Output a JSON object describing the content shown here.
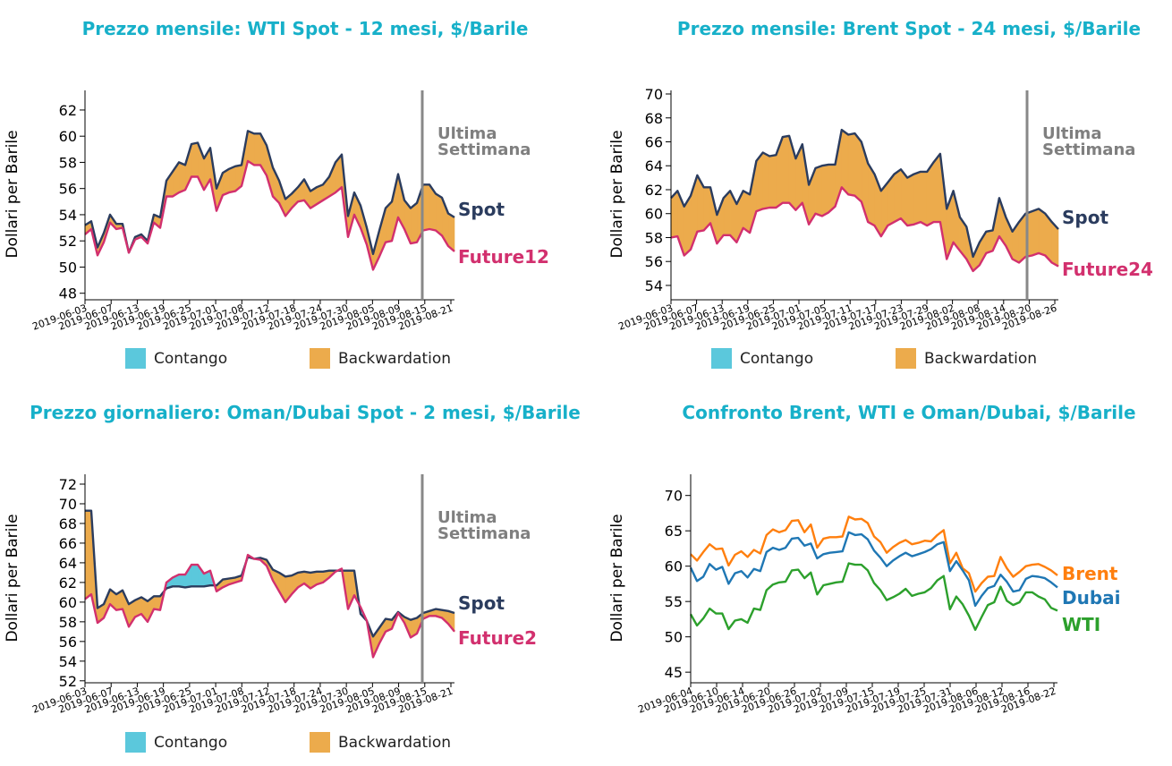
{
  "colors": {
    "title": "#17b0c9",
    "spot": "#2b3c5e",
    "future": "#d2306e",
    "contango": "#5bc8dc",
    "backwardation": "#ecab4c",
    "vline": "#888888",
    "brent": "#ff7f0e",
    "dubai": "#1f77b4",
    "wti": "#2ca02c"
  },
  "chart_data": [
    {
      "type": "area",
      "title": "Prezzo mensile: WTI Spot - 12 mesi, $/Barile",
      "ylabel": "Dollari per Barile",
      "ylim": [
        47.5,
        63.5
      ],
      "yticks": [
        48,
        50,
        52,
        54,
        56,
        58,
        60,
        62
      ],
      "xticks": [
        "2019-06-03",
        "2019-06-07",
        "2019-06-13",
        "2019-06-19",
        "2019-06-25",
        "2019-07-01",
        "2019-07-08",
        "2019-07-12",
        "2019-07-18",
        "2019-07-24",
        "2019-07-30",
        "2019-08-05",
        "2019-08-09",
        "2019-08-15",
        "2019-08-21"
      ],
      "vline_label": [
        "Ultima",
        "Settimana"
      ],
      "legend": [
        "Contango",
        "Backwardation"
      ],
      "series": [
        {
          "name": "Spot",
          "values": [
            53.2,
            53.5,
            51.5,
            52.6,
            54.0,
            53.3,
            53.3,
            51.1,
            52.3,
            52.5,
            52.0,
            54.0,
            53.8,
            56.6,
            57.3,
            58.0,
            57.8,
            59.4,
            59.5,
            58.3,
            59.1,
            56.0,
            57.2,
            57.5,
            57.7,
            57.8,
            60.4,
            60.2,
            60.2,
            59.3,
            57.6,
            56.6,
            55.2,
            55.6,
            56.1,
            56.7,
            55.8,
            56.1,
            56.3,
            56.9,
            58.0,
            58.6,
            53.9,
            55.7,
            54.7,
            53.0,
            51.0,
            52.8,
            54.5,
            55.0,
            57.1,
            55.1,
            54.5,
            54.9,
            56.3,
            56.3,
            55.6,
            55.3,
            54.1,
            53.8
          ]
        },
        {
          "name": "Future12",
          "values": [
            52.5,
            52.9,
            50.9,
            51.9,
            53.4,
            52.9,
            53.0,
            51.1,
            52.1,
            52.3,
            51.8,
            53.4,
            53.0,
            55.4,
            55.4,
            55.7,
            55.9,
            56.9,
            56.9,
            55.9,
            56.7,
            54.3,
            55.5,
            55.7,
            55.8,
            56.2,
            58.1,
            57.8,
            57.8,
            57.0,
            55.4,
            54.9,
            53.9,
            54.5,
            55.0,
            55.1,
            54.5,
            54.8,
            55.1,
            55.4,
            55.7,
            56.1,
            52.3,
            54.0,
            53.0,
            51.7,
            49.8,
            50.8,
            51.9,
            52.0,
            53.8,
            52.9,
            51.8,
            51.9,
            52.8,
            52.9,
            52.8,
            52.4,
            51.6,
            51.2
          ]
        }
      ]
    },
    {
      "type": "area",
      "title": "Prezzo mensile: Brent Spot - 24 mesi, $/Barile",
      "ylabel": "Dollari per Barile",
      "ylim": [
        52.8,
        70.3
      ],
      "yticks": [
        54,
        56,
        58,
        60,
        62,
        64,
        66,
        68,
        70
      ],
      "xticks": [
        "2019-06-03",
        "2019-06-07",
        "2019-06-13",
        "2019-06-19",
        "2019-06-25",
        "2019-07-01",
        "2019-07-05",
        "2019-07-11",
        "2019-07-17",
        "2019-07-23",
        "2019-07-29",
        "2019-08-02",
        "2019-08-08",
        "2019-08-14",
        "2019-08-20",
        "2019-08-26"
      ],
      "vline_label": [
        "Ultima",
        "Settimana"
      ],
      "legend": [
        "Contango",
        "Backwardation"
      ],
      "series": [
        {
          "name": "Spot",
          "values": [
            61.3,
            61.9,
            60.6,
            61.5,
            63.2,
            62.2,
            62.2,
            59.9,
            61.3,
            61.9,
            60.8,
            61.9,
            61.6,
            64.4,
            65.1,
            64.8,
            64.9,
            66.4,
            66.5,
            64.6,
            65.8,
            62.4,
            63.8,
            64.0,
            64.1,
            64.1,
            67.0,
            66.6,
            66.7,
            66.0,
            64.2,
            63.3,
            61.9,
            62.6,
            63.3,
            63.7,
            63.0,
            63.3,
            63.5,
            63.5,
            64.3,
            65.0,
            60.4,
            61.9,
            59.7,
            58.9,
            56.4,
            57.6,
            58.5,
            58.6,
            61.3,
            59.7,
            58.5,
            59.3,
            60.0,
            60.2,
            60.4,
            60.0,
            59.3,
            58.7
          ]
        },
        {
          "name": "Future24",
          "values": [
            58.0,
            58.1,
            56.5,
            57.0,
            58.5,
            58.6,
            59.2,
            57.5,
            58.2,
            58.2,
            57.6,
            58.8,
            58.4,
            60.2,
            60.4,
            60.5,
            60.5,
            60.9,
            60.9,
            60.3,
            60.9,
            59.1,
            60.0,
            59.8,
            60.1,
            60.6,
            62.2,
            61.6,
            61.5,
            61.0,
            59.3,
            59.0,
            58.1,
            59.0,
            59.3,
            59.6,
            59.0,
            59.1,
            59.3,
            59.0,
            59.3,
            59.3,
            56.2,
            57.6,
            56.9,
            56.2,
            55.2,
            55.7,
            56.7,
            56.9,
            58.1,
            57.3,
            56.2,
            55.9,
            56.4,
            56.5,
            56.7,
            56.5,
            55.9,
            55.6
          ]
        }
      ]
    },
    {
      "type": "area",
      "title": "Prezzo giornaliero: Oman/Dubai Spot - 2 mesi, $/Barile",
      "ylabel": "Dollari per Barile",
      "ylim": [
        51.8,
        73.0
      ],
      "yticks": [
        52,
        54,
        56,
        58,
        60,
        62,
        64,
        66,
        68,
        70,
        72
      ],
      "xticks": [
        "2019-06-03",
        "2019-06-07",
        "2019-06-13",
        "2019-06-19",
        "2019-06-25",
        "2019-07-01",
        "2019-07-08",
        "2019-07-12",
        "2019-07-18",
        "2019-07-24",
        "2019-07-30",
        "2019-08-05",
        "2019-08-09",
        "2019-08-15",
        "2019-08-21"
      ],
      "vline_label": [
        "Ultima",
        "Settimana"
      ],
      "legend": [
        "Contango",
        "Backwardation"
      ],
      "series": [
        {
          "name": "Spot",
          "values": [
            69.3,
            69.3,
            59.4,
            59.8,
            61.3,
            60.8,
            61.2,
            59.8,
            60.2,
            60.5,
            60.1,
            60.6,
            60.6,
            61.4,
            61.6,
            61.6,
            61.5,
            61.6,
            61.6,
            61.6,
            61.7,
            61.7,
            62.3,
            62.4,
            62.5,
            62.7,
            64.6,
            64.4,
            64.5,
            64.3,
            63.3,
            63.0,
            62.6,
            62.7,
            63.0,
            63.1,
            63.0,
            63.1,
            63.1,
            63.2,
            63.2,
            63.2,
            63.2,
            63.2,
            58.8,
            58.1,
            56.5,
            57.4,
            58.3,
            58.2,
            59.0,
            58.5,
            58.2,
            58.4,
            58.9,
            59.1,
            59.3,
            59.2,
            59.1,
            58.9
          ]
        },
        {
          "name": "Future2",
          "values": [
            60.3,
            60.8,
            57.9,
            58.4,
            59.8,
            59.2,
            59.3,
            57.5,
            58.5,
            58.8,
            58.0,
            59.3,
            59.2,
            62.0,
            62.5,
            62.8,
            62.8,
            63.8,
            63.8,
            62.9,
            63.2,
            61.1,
            61.5,
            61.8,
            62.0,
            62.2,
            64.8,
            64.4,
            64.3,
            63.7,
            62.2,
            61.1,
            60.0,
            60.8,
            61.5,
            61.9,
            61.4,
            61.8,
            62.0,
            62.5,
            63.1,
            63.4,
            59.3,
            60.7,
            59.5,
            58.1,
            54.4,
            55.8,
            57.0,
            57.3,
            58.9,
            57.9,
            56.4,
            56.8,
            58.3,
            58.6,
            58.6,
            58.4,
            57.8,
            57.0
          ]
        }
      ]
    },
    {
      "type": "line",
      "title": "Confronto Brent, WTI e Oman/Dubai, $/Barile",
      "ylabel": "Dollari per Barile",
      "ylim": [
        43.5,
        73.0
      ],
      "yticks": [
        45,
        50,
        55,
        60,
        65,
        70
      ],
      "xticks": [
        "2019-06-04",
        "2019-06-10",
        "2019-06-14",
        "2019-06-20",
        "2019-06-26",
        "2019-07-02",
        "2019-07-09",
        "2019-07-15",
        "2019-07-19",
        "2019-07-25",
        "2019-07-31",
        "2019-08-06",
        "2019-08-12",
        "2019-08-16",
        "2019-08-22"
      ],
      "series": [
        {
          "name": "Brent",
          "values": [
            61.7,
            60.8,
            62.0,
            63.1,
            62.4,
            62.5,
            60.1,
            61.6,
            62.1,
            61.3,
            62.3,
            61.8,
            64.4,
            65.2,
            64.8,
            65.1,
            66.4,
            66.5,
            64.8,
            65.9,
            62.6,
            63.9,
            64.1,
            64.1,
            64.2,
            67.0,
            66.6,
            66.7,
            66.1,
            64.2,
            63.4,
            61.9,
            62.7,
            63.3,
            63.7,
            63.1,
            63.3,
            63.6,
            63.5,
            64.4,
            65.1,
            60.4,
            61.9,
            59.7,
            59.0,
            56.4,
            57.6,
            58.5,
            58.6,
            61.3,
            59.7,
            58.5,
            59.2,
            60.0,
            60.2,
            60.3,
            59.9,
            59.4,
            58.7
          ]
        },
        {
          "name": "Dubai",
          "values": [
            59.8,
            57.9,
            58.5,
            60.3,
            59.5,
            59.9,
            57.5,
            59.0,
            59.3,
            58.4,
            59.6,
            59.3,
            62.0,
            62.6,
            62.3,
            62.6,
            63.9,
            64.0,
            62.9,
            63.2,
            61.1,
            61.7,
            61.9,
            62.0,
            62.1,
            64.8,
            64.4,
            64.5,
            63.8,
            62.2,
            61.2,
            60.0,
            60.8,
            61.4,
            61.9,
            61.4,
            61.7,
            62.0,
            62.4,
            63.1,
            63.4,
            59.3,
            60.7,
            59.4,
            58.0,
            54.4,
            55.8,
            56.9,
            57.2,
            58.8,
            57.8,
            56.4,
            56.6,
            58.2,
            58.6,
            58.5,
            58.3,
            57.7,
            57.0
          ]
        },
        {
          "name": "WTI",
          "values": [
            53.2,
            51.6,
            52.6,
            54.0,
            53.3,
            53.3,
            51.1,
            52.3,
            52.5,
            52.0,
            54.0,
            53.8,
            56.6,
            57.4,
            57.7,
            57.8,
            59.4,
            59.5,
            58.3,
            59.1,
            56.0,
            57.3,
            57.5,
            57.7,
            57.8,
            60.4,
            60.2,
            60.2,
            59.4,
            57.6,
            56.6,
            55.2,
            55.6,
            56.1,
            56.8,
            55.8,
            56.1,
            56.3,
            56.9,
            58.0,
            58.6,
            53.9,
            55.7,
            54.6,
            53.0,
            51.0,
            52.8,
            54.5,
            54.9,
            57.1,
            55.1,
            54.5,
            54.9,
            56.3,
            56.3,
            55.7,
            55.3,
            54.1,
            53.7
          ]
        }
      ]
    }
  ]
}
